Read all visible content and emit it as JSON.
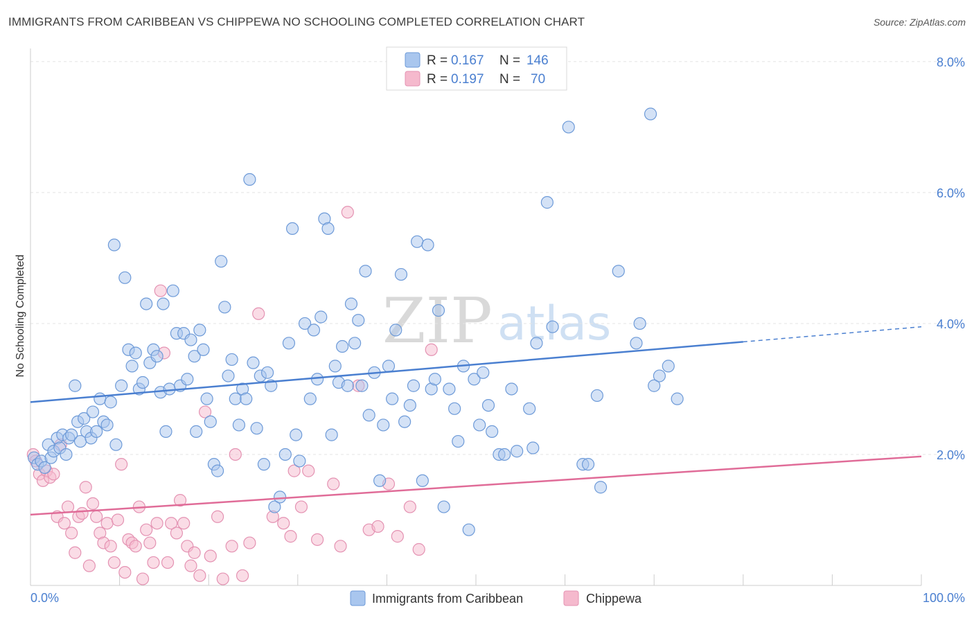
{
  "title": "IMMIGRANTS FROM CARIBBEAN VS CHIPPEWA NO SCHOOLING COMPLETED CORRELATION CHART",
  "source": "Source: ZipAtlas.com",
  "watermark": {
    "zip": "ZIP",
    "atlas": "atlas"
  },
  "colors": {
    "blue": "#4a7fd0",
    "blue_fill": "#a9c6ee",
    "pink": "#e06c98",
    "pink_fill": "#f5b9cd",
    "grid": "#e3e3e3"
  },
  "legend": {
    "blue": {
      "r_label": "R =",
      "r_value": "0.167",
      "n_label": "N =",
      "n_value": "146"
    },
    "pink": {
      "r_label": "R =",
      "r_value": "0.197",
      "n_label": "N =",
      "n_value": "70"
    }
  },
  "chart_data": {
    "type": "scatter",
    "title": "IMMIGRANTS FROM CARIBBEAN VS CHIPPEWA NO SCHOOLING COMPLETED CORRELATION CHART",
    "xlabel": "",
    "ylabel": "No Schooling Completed",
    "xlim": [
      0,
      100
    ],
    "ylim": [
      0,
      8.2
    ],
    "x_tick_labels": [
      "0.0%",
      "100.0%"
    ],
    "y_ticks": [
      2,
      4,
      6,
      8
    ],
    "y_tick_labels": [
      "2.0%",
      "4.0%",
      "6.0%",
      "8.0%"
    ],
    "series": [
      {
        "name": "Immigrants from Caribbean",
        "color": "#4a7fd0",
        "trend": {
          "x0": 0,
          "y0": 2.8,
          "x1": 80,
          "y1": 3.72,
          "dash_x1": 100,
          "dash_y1": 3.95
        },
        "points": [
          [
            0.4,
            1.95
          ],
          [
            0.8,
            1.85
          ],
          [
            1.2,
            1.9
          ],
          [
            1.6,
            1.8
          ],
          [
            2.0,
            2.15
          ],
          [
            2.3,
            1.95
          ],
          [
            2.6,
            2.05
          ],
          [
            3.0,
            2.25
          ],
          [
            3.3,
            2.1
          ],
          [
            3.6,
            2.3
          ],
          [
            4.0,
            2.0
          ],
          [
            4.3,
            2.25
          ],
          [
            4.6,
            2.3
          ],
          [
            5.0,
            3.05
          ],
          [
            5.3,
            2.5
          ],
          [
            5.6,
            2.2
          ],
          [
            6.0,
            2.55
          ],
          [
            6.3,
            2.35
          ],
          [
            6.8,
            2.25
          ],
          [
            7.0,
            2.65
          ],
          [
            7.4,
            2.35
          ],
          [
            7.8,
            2.85
          ],
          [
            8.2,
            2.5
          ],
          [
            8.6,
            2.45
          ],
          [
            9.0,
            2.8
          ],
          [
            9.4,
            5.2
          ],
          [
            9.6,
            2.15
          ],
          [
            10.2,
            3.05
          ],
          [
            10.6,
            4.7
          ],
          [
            11.0,
            3.6
          ],
          [
            11.4,
            3.35
          ],
          [
            11.8,
            3.55
          ],
          [
            12.2,
            3.0
          ],
          [
            12.6,
            3.1
          ],
          [
            13.0,
            4.3
          ],
          [
            13.4,
            3.4
          ],
          [
            13.8,
            3.6
          ],
          [
            14.2,
            3.5
          ],
          [
            14.6,
            2.95
          ],
          [
            14.9,
            4.3
          ],
          [
            15.2,
            2.35
          ],
          [
            15.6,
            3.0
          ],
          [
            16.0,
            4.5
          ],
          [
            16.4,
            3.85
          ],
          [
            16.8,
            3.05
          ],
          [
            17.2,
            3.85
          ],
          [
            17.6,
            3.15
          ],
          [
            18.0,
            3.75
          ],
          [
            18.4,
            3.5
          ],
          [
            18.6,
            2.35
          ],
          [
            19.0,
            3.9
          ],
          [
            19.4,
            3.6
          ],
          [
            19.8,
            2.85
          ],
          [
            20.2,
            2.5
          ],
          [
            20.6,
            1.85
          ],
          [
            21.0,
            1.75
          ],
          [
            21.4,
            4.95
          ],
          [
            21.8,
            4.25
          ],
          [
            22.2,
            3.2
          ],
          [
            22.6,
            3.45
          ],
          [
            23.0,
            2.85
          ],
          [
            23.4,
            2.45
          ],
          [
            23.8,
            3.0
          ],
          [
            24.2,
            2.85
          ],
          [
            24.6,
            6.2
          ],
          [
            25.0,
            3.4
          ],
          [
            25.4,
            2.4
          ],
          [
            25.8,
            3.2
          ],
          [
            26.2,
            1.85
          ],
          [
            26.6,
            3.25
          ],
          [
            27.0,
            3.05
          ],
          [
            27.4,
            1.2
          ],
          [
            28.0,
            1.35
          ],
          [
            28.6,
            2.0
          ],
          [
            29.0,
            3.7
          ],
          [
            29.4,
            5.45
          ],
          [
            29.8,
            2.3
          ],
          [
            30.2,
            1.9
          ],
          [
            30.8,
            4.0
          ],
          [
            31.4,
            2.85
          ],
          [
            31.8,
            3.9
          ],
          [
            32.2,
            3.15
          ],
          [
            32.6,
            4.1
          ],
          [
            33.0,
            5.6
          ],
          [
            33.4,
            5.45
          ],
          [
            33.8,
            2.3
          ],
          [
            34.2,
            3.35
          ],
          [
            34.6,
            3.1
          ],
          [
            35.0,
            3.65
          ],
          [
            35.6,
            3.05
          ],
          [
            36.0,
            4.3
          ],
          [
            36.4,
            3.7
          ],
          [
            36.8,
            4.05
          ],
          [
            37.2,
            3.05
          ],
          [
            37.6,
            4.8
          ],
          [
            38.0,
            2.6
          ],
          [
            38.6,
            3.25
          ],
          [
            39.2,
            1.6
          ],
          [
            39.6,
            2.45
          ],
          [
            40.2,
            3.35
          ],
          [
            40.6,
            2.85
          ],
          [
            41.0,
            3.9
          ],
          [
            41.6,
            4.75
          ],
          [
            42.0,
            2.5
          ],
          [
            42.6,
            2.75
          ],
          [
            43.0,
            3.05
          ],
          [
            43.4,
            5.25
          ],
          [
            44.0,
            1.6
          ],
          [
            44.6,
            5.2
          ],
          [
            45.0,
            3.0
          ],
          [
            45.4,
            3.15
          ],
          [
            45.8,
            4.2
          ],
          [
            46.4,
            1.2
          ],
          [
            47.0,
            3.0
          ],
          [
            47.6,
            2.7
          ],
          [
            48.0,
            2.2
          ],
          [
            48.6,
            3.35
          ],
          [
            49.2,
            0.85
          ],
          [
            49.8,
            3.15
          ],
          [
            50.4,
            2.45
          ],
          [
            50.8,
            3.25
          ],
          [
            51.4,
            2.75
          ],
          [
            51.8,
            2.35
          ],
          [
            52.6,
            2.0
          ],
          [
            53.2,
            2.0
          ],
          [
            54.0,
            3.0
          ],
          [
            54.6,
            2.05
          ],
          [
            56.0,
            2.7
          ],
          [
            56.4,
            2.1
          ],
          [
            56.8,
            3.7
          ],
          [
            58.0,
            5.85
          ],
          [
            58.6,
            3.95
          ],
          [
            60.4,
            7.0
          ],
          [
            62.0,
            1.85
          ],
          [
            62.6,
            1.85
          ],
          [
            63.6,
            2.9
          ],
          [
            64.0,
            1.5
          ],
          [
            66.0,
            4.8
          ],
          [
            68.0,
            3.7
          ],
          [
            68.4,
            4.0
          ],
          [
            69.6,
            7.2
          ],
          [
            70.0,
            3.05
          ],
          [
            70.6,
            3.2
          ],
          [
            71.6,
            3.35
          ],
          [
            72.6,
            2.85
          ]
        ]
      },
      {
        "name": "Chippewa",
        "color": "#e06c98",
        "trend": {
          "x0": 0,
          "y0": 1.08,
          "x1": 100,
          "y1": 1.97
        },
        "points": [
          [
            0.3,
            2.0
          ],
          [
            0.6,
            1.9
          ],
          [
            1.0,
            1.7
          ],
          [
            1.4,
            1.6
          ],
          [
            1.8,
            1.75
          ],
          [
            2.2,
            1.65
          ],
          [
            2.6,
            1.7
          ],
          [
            3.0,
            1.05
          ],
          [
            3.4,
            2.15
          ],
          [
            3.8,
            0.95
          ],
          [
            4.2,
            1.2
          ],
          [
            4.6,
            0.8
          ],
          [
            5.0,
            0.5
          ],
          [
            5.4,
            1.05
          ],
          [
            5.8,
            1.1
          ],
          [
            6.2,
            1.5
          ],
          [
            6.6,
            0.3
          ],
          [
            7.0,
            1.25
          ],
          [
            7.4,
            1.05
          ],
          [
            7.8,
            0.8
          ],
          [
            8.2,
            0.65
          ],
          [
            8.6,
            0.95
          ],
          [
            9.0,
            0.6
          ],
          [
            9.4,
            0.35
          ],
          [
            9.8,
            1.0
          ],
          [
            10.2,
            1.85
          ],
          [
            10.6,
            0.2
          ],
          [
            11.0,
            0.7
          ],
          [
            11.4,
            0.65
          ],
          [
            11.8,
            0.6
          ],
          [
            12.2,
            1.2
          ],
          [
            12.6,
            0.1
          ],
          [
            13.0,
            0.85
          ],
          [
            13.4,
            0.65
          ],
          [
            13.8,
            0.35
          ],
          [
            14.2,
            0.95
          ],
          [
            14.6,
            4.5
          ],
          [
            15.0,
            3.55
          ],
          [
            15.4,
            0.35
          ],
          [
            15.8,
            0.95
          ],
          [
            16.4,
            0.8
          ],
          [
            16.8,
            1.3
          ],
          [
            17.2,
            0.95
          ],
          [
            17.6,
            0.6
          ],
          [
            18.0,
            0.3
          ],
          [
            18.4,
            0.5
          ],
          [
            19.0,
            0.15
          ],
          [
            19.6,
            2.65
          ],
          [
            20.2,
            0.45
          ],
          [
            21.0,
            1.05
          ],
          [
            21.6,
            0.1
          ],
          [
            22.6,
            0.6
          ],
          [
            23.0,
            2.0
          ],
          [
            23.8,
            0.15
          ],
          [
            24.6,
            0.65
          ],
          [
            25.6,
            4.15
          ],
          [
            27.2,
            1.05
          ],
          [
            28.4,
            0.95
          ],
          [
            29.2,
            0.75
          ],
          [
            29.6,
            1.75
          ],
          [
            30.4,
            1.2
          ],
          [
            31.2,
            1.75
          ],
          [
            32.2,
            0.7
          ],
          [
            34.0,
            1.55
          ],
          [
            34.8,
            0.6
          ],
          [
            35.6,
            5.7
          ],
          [
            36.8,
            3.05
          ],
          [
            38.0,
            0.85
          ],
          [
            39.0,
            0.9
          ],
          [
            40.2,
            1.55
          ],
          [
            41.2,
            0.75
          ],
          [
            42.6,
            1.2
          ],
          [
            43.6,
            0.55
          ],
          [
            45.0,
            3.6
          ]
        ]
      }
    ],
    "bottom_legend": [
      "Immigrants from Caribbean",
      "Chippewa"
    ]
  }
}
